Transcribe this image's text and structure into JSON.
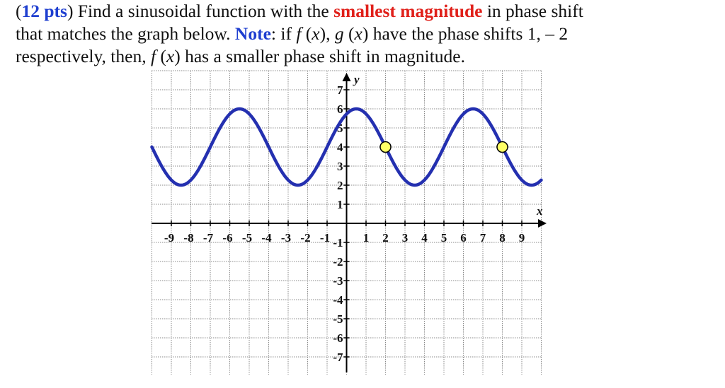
{
  "question": {
    "points": "12 pts",
    "line1_a": "Find a sinusoidal function with the ",
    "line1_emph": "smallest magnitude",
    "line1_b": " in phase shift",
    "line2_a": "that matches the graph below. ",
    "line2_note": "Note",
    "line2_b": ": if ",
    "line2_f": "f",
    "line2_c": " (",
    "line2_x1": "x",
    "line2_d": "), ",
    "line2_g": "g",
    "line2_e": " (",
    "line2_x2": "x",
    "line2_f2": ") have the phase shifts 1, – 2",
    "line3_a": "respectively, then, ",
    "line3_f": "f",
    "line3_b": " (",
    "line3_x": "x",
    "line3_c": ") has a smaller phase shift in magnitude."
  },
  "chart_data": {
    "type": "line",
    "title": "",
    "xlabel": "x",
    "ylabel": "y",
    "xlim": [
      -10,
      10
    ],
    "ylim": [
      -8,
      8
    ],
    "grid": true,
    "x_ticks": [
      -9,
      -8,
      -7,
      -6,
      -5,
      -4,
      -3,
      -2,
      -1,
      1,
      2,
      3,
      4,
      5,
      6,
      7,
      8,
      9
    ],
    "y_ticks": [
      -7,
      -6,
      -5,
      -4,
      -3,
      -2,
      -1,
      1,
      2,
      3,
      4,
      5,
      6,
      7
    ],
    "function": "y = 4 + 2*sin((pi/3)*(x+1))",
    "amplitude": 2,
    "midline": 4,
    "period": 6,
    "max": 6,
    "min": 2,
    "series": [
      {
        "name": "sinusoid",
        "color": "#2430b0",
        "x": [
          -10,
          -8.5,
          -7,
          -5.5,
          -4,
          -2.5,
          -1,
          0.5,
          2,
          3.5,
          5,
          6.5,
          8,
          9.5,
          10
        ],
        "y": [
          4,
          2,
          4,
          6,
          4,
          2,
          4,
          6,
          4,
          2,
          4,
          6,
          4,
          2,
          2.27
        ]
      }
    ],
    "highlighted_points": [
      {
        "x": 2,
        "y": 4,
        "color": "#ffff66"
      },
      {
        "x": 8,
        "y": 4,
        "color": "#ffff66"
      }
    ]
  }
}
